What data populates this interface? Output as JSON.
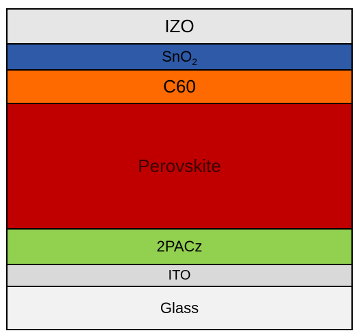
{
  "layers": [
    {
      "id": "izo",
      "label": "IZO",
      "color": "#e6e6e6",
      "text_color": "#000000"
    },
    {
      "id": "sno2",
      "label": "SnO",
      "subscript": "2",
      "color": "#2e5aa8",
      "text_color": "#000000"
    },
    {
      "id": "c60",
      "label": "C60",
      "color": "#ff6a00",
      "text_color": "#000000"
    },
    {
      "id": "perovskite",
      "label": "Perovskite",
      "color": "#c00000",
      "text_color": "#3a0000"
    },
    {
      "id": "2pacz",
      "label": "2PACz",
      "color": "#92d050",
      "text_color": "#000000"
    },
    {
      "id": "ito",
      "label": "ITO",
      "color": "#d9d9d9",
      "text_color": "#000000"
    },
    {
      "id": "glass",
      "label": "Glass",
      "color": "#f2f2f2",
      "text_color": "#000000"
    }
  ]
}
